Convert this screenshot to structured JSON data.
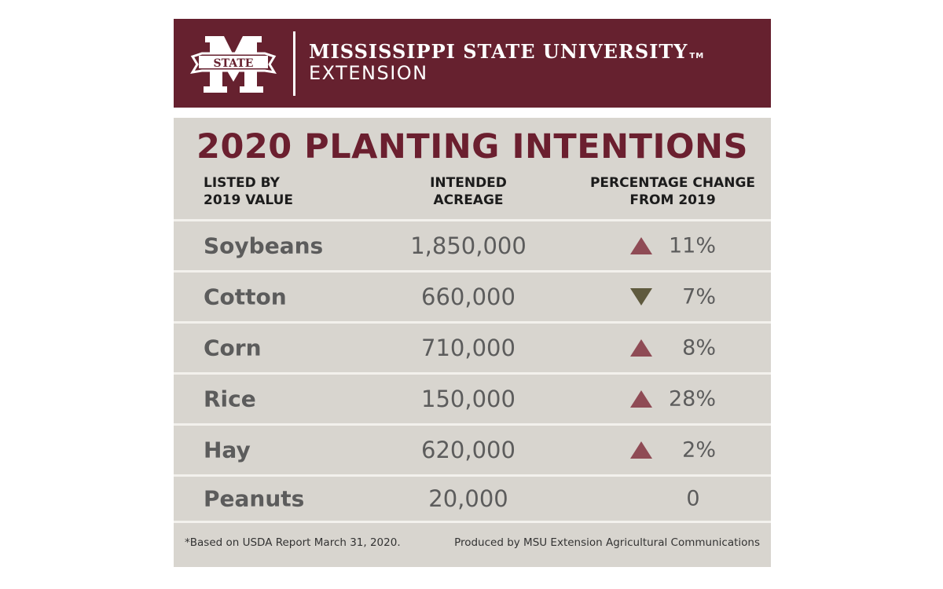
{
  "header": {
    "logo_text": "STATE",
    "university": "MISSISSIPPI STATE UNIVERSITY",
    "trademark": "TM",
    "extension": "EXTENSION"
  },
  "title": "2020 PLANTING INTENTIONS",
  "columns": {
    "listed_line1": "LISTED BY",
    "listed_line2": "2019 VALUE",
    "acreage_line1": "INTENDED",
    "acreage_line2": "ACREAGE",
    "change_line1": "PERCENTAGE CHANGE",
    "change_line2": "FROM 2019"
  },
  "rows": [
    {
      "crop": "Soybeans",
      "acreage": "1,850,000",
      "direction": "up",
      "change": "11%"
    },
    {
      "crop": "Cotton",
      "acreage": "660,000",
      "direction": "down",
      "change": "7%"
    },
    {
      "crop": "Corn",
      "acreage": "710,000",
      "direction": "up",
      "change": "8%"
    },
    {
      "crop": "Rice",
      "acreage": "150,000",
      "direction": "up",
      "change": "28%"
    },
    {
      "crop": "Hay",
      "acreage": "620,000",
      "direction": "up",
      "change": "2%"
    },
    {
      "crop": "Peanuts",
      "acreage": "20,000",
      "direction": "none",
      "change": "0"
    }
  ],
  "footer": {
    "note": "*Based on USDA Report March 31, 2020.",
    "credit": "Produced by MSU Extension Agricultural Communications"
  },
  "colors": {
    "maroon": "#66212f",
    "panel": "#d8d5cf",
    "up_arrow": "#8f4b55",
    "down_arrow": "#5f5a3e"
  }
}
